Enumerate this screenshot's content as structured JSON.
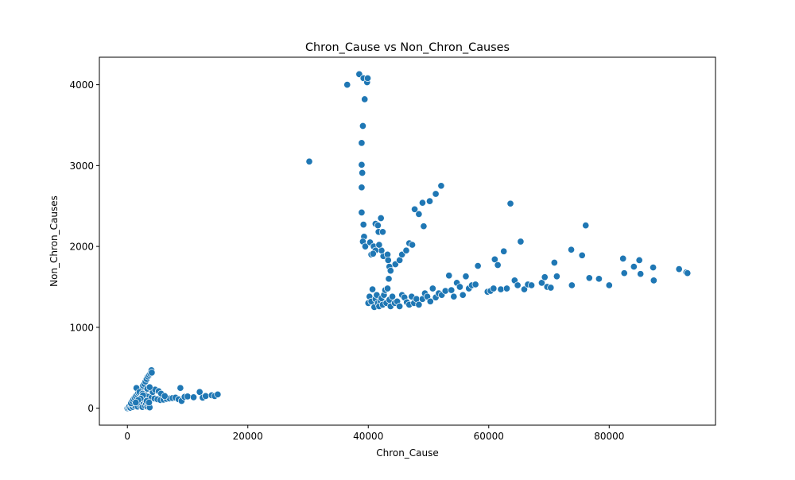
{
  "chart_data": {
    "type": "scatter",
    "title": "Chron_Cause vs Non_Chron_Causes",
    "xlabel": "Chron_Cause",
    "ylabel": "Non_Chron_Causes",
    "xlim": [
      -4650,
      97650
    ],
    "ylim": [
      -210,
      4340
    ],
    "x_ticks": [
      0,
      20000,
      40000,
      60000,
      80000
    ],
    "y_ticks": [
      0,
      1000,
      2000,
      3000,
      4000
    ],
    "grid": false,
    "legend": "none",
    "point_color": "#1f77b4",
    "series": [
      {
        "points": [
          [
            0,
            0
          ],
          [
            150,
            10
          ],
          [
            300,
            20
          ],
          [
            500,
            5
          ],
          [
            700,
            30
          ],
          [
            900,
            15
          ],
          [
            1100,
            40
          ],
          [
            1300,
            25
          ],
          [
            1500,
            60
          ],
          [
            1700,
            20
          ],
          [
            1900,
            80
          ],
          [
            2100,
            35
          ],
          [
            2300,
            50
          ],
          [
            2500,
            15
          ],
          [
            2700,
            70
          ],
          [
            2900,
            30
          ],
          [
            3100,
            55
          ],
          [
            3300,
            20
          ],
          [
            3500,
            45
          ],
          [
            3700,
            10
          ],
          [
            600,
            60
          ],
          [
            800,
            90
          ],
          [
            1000,
            110
          ],
          [
            1200,
            130
          ],
          [
            1400,
            150
          ],
          [
            1600,
            170
          ],
          [
            1800,
            190
          ],
          [
            2000,
            210
          ],
          [
            2200,
            230
          ],
          [
            2400,
            260
          ],
          [
            2600,
            280
          ],
          [
            2800,
            300
          ],
          [
            3000,
            330
          ],
          [
            3200,
            360
          ],
          [
            3400,
            390
          ],
          [
            3600,
            410
          ],
          [
            3800,
            430
          ],
          [
            3900,
            460
          ],
          [
            4000,
            470
          ],
          [
            4050,
            440
          ],
          [
            1500,
            250
          ],
          [
            2000,
            200
          ],
          [
            2500,
            180
          ],
          [
            3000,
            160
          ],
          [
            3500,
            140
          ],
          [
            4000,
            130
          ],
          [
            4500,
            120
          ],
          [
            5000,
            110
          ],
          [
            5500,
            100
          ],
          [
            6000,
            105
          ],
          [
            6500,
            115
          ],
          [
            7000,
            120
          ],
          [
            7500,
            125
          ],
          [
            8000,
            130
          ],
          [
            8500,
            110
          ],
          [
            9000,
            90
          ],
          [
            9500,
            140
          ],
          [
            10000,
            145
          ],
          [
            11000,
            135
          ],
          [
            12000,
            200
          ],
          [
            12500,
            130
          ],
          [
            13000,
            150
          ],
          [
            14000,
            160
          ],
          [
            14500,
            150
          ],
          [
            15000,
            170
          ],
          [
            8800,
            250
          ],
          [
            2800,
            110
          ],
          [
            3200,
            90
          ],
          [
            3600,
            70
          ],
          [
            4200,
            200
          ],
          [
            4600,
            230
          ],
          [
            5200,
            210
          ],
          [
            5600,
            180
          ],
          [
            6200,
            150
          ],
          [
            3300,
            240
          ],
          [
            3700,
            260
          ],
          [
            2600,
            160
          ],
          [
            2200,
            120
          ],
          [
            1800,
            100
          ],
          [
            1400,
            70
          ],
          [
            30200,
            3050
          ],
          [
            36500,
            4000
          ],
          [
            38500,
            4130
          ],
          [
            39200,
            4080
          ],
          [
            39800,
            4030
          ],
          [
            39900,
            4080
          ],
          [
            39400,
            3820
          ],
          [
            39100,
            3490
          ],
          [
            38900,
            3280
          ],
          [
            38900,
            3010
          ],
          [
            39000,
            2910
          ],
          [
            38900,
            2730
          ],
          [
            38900,
            2420
          ],
          [
            39200,
            2270
          ],
          [
            39300,
            2120
          ],
          [
            39100,
            2060
          ],
          [
            39500,
            2000
          ],
          [
            40300,
            2050
          ],
          [
            40500,
            1900
          ],
          [
            40900,
            2000
          ],
          [
            41200,
            2280
          ],
          [
            41600,
            2260
          ],
          [
            41700,
            2180
          ],
          [
            42100,
            2350
          ],
          [
            42400,
            2180
          ],
          [
            42500,
            1880
          ],
          [
            42200,
            1950
          ],
          [
            41800,
            2020
          ],
          [
            41200,
            1950
          ],
          [
            40800,
            1910
          ],
          [
            43200,
            1900
          ],
          [
            43300,
            1830
          ],
          [
            43500,
            1750
          ],
          [
            43700,
            1700
          ],
          [
            43400,
            1600
          ],
          [
            44500,
            1780
          ],
          [
            45200,
            1830
          ],
          [
            45600,
            1900
          ],
          [
            46300,
            1950
          ],
          [
            46800,
            2040
          ],
          [
            47300,
            2020
          ],
          [
            47700,
            2460
          ],
          [
            48400,
            2400
          ],
          [
            49000,
            2540
          ],
          [
            49200,
            2250
          ],
          [
            50200,
            2560
          ],
          [
            51200,
            2650
          ],
          [
            52100,
            2750
          ],
          [
            40000,
            1300
          ],
          [
            40200,
            1380
          ],
          [
            40500,
            1320
          ],
          [
            40700,
            1470
          ],
          [
            41000,
            1250
          ],
          [
            41200,
            1350
          ],
          [
            41400,
            1400
          ],
          [
            41600,
            1300
          ],
          [
            41800,
            1260
          ],
          [
            42000,
            1330
          ],
          [
            42200,
            1360
          ],
          [
            42400,
            1280
          ],
          [
            42600,
            1400
          ],
          [
            42800,
            1460
          ],
          [
            43000,
            1300
          ],
          [
            43200,
            1480
          ],
          [
            43500,
            1340
          ],
          [
            43700,
            1260
          ],
          [
            44000,
            1380
          ],
          [
            44400,
            1300
          ],
          [
            44800,
            1320
          ],
          [
            45200,
            1260
          ],
          [
            45600,
            1400
          ],
          [
            46000,
            1370
          ],
          [
            46400,
            1310
          ],
          [
            46800,
            1280
          ],
          [
            47200,
            1380
          ],
          [
            47600,
            1300
          ],
          [
            48000,
            1350
          ],
          [
            48400,
            1280
          ],
          [
            49000,
            1350
          ],
          [
            49400,
            1420
          ],
          [
            49800,
            1380
          ],
          [
            50300,
            1320
          ],
          [
            50700,
            1480
          ],
          [
            51200,
            1370
          ],
          [
            51700,
            1420
          ],
          [
            52200,
            1400
          ],
          [
            52800,
            1450
          ],
          [
            53400,
            1640
          ],
          [
            53800,
            1460
          ],
          [
            54200,
            1380
          ],
          [
            54700,
            1550
          ],
          [
            55200,
            1500
          ],
          [
            55700,
            1400
          ],
          [
            56200,
            1630
          ],
          [
            56700,
            1480
          ],
          [
            57200,
            1520
          ],
          [
            57800,
            1530
          ],
          [
            58200,
            1760
          ],
          [
            59800,
            1440
          ],
          [
            60300,
            1450
          ],
          [
            60800,
            1480
          ],
          [
            61000,
            1840
          ],
          [
            61500,
            1770
          ],
          [
            62000,
            1470
          ],
          [
            62500,
            1940
          ],
          [
            63000,
            1480
          ],
          [
            63600,
            2530
          ],
          [
            64300,
            1580
          ],
          [
            64800,
            1520
          ],
          [
            65300,
            2060
          ],
          [
            65900,
            1470
          ],
          [
            66500,
            1530
          ],
          [
            67100,
            1520
          ],
          [
            68800,
            1550
          ],
          [
            69300,
            1620
          ],
          [
            69700,
            1500
          ],
          [
            70300,
            1490
          ],
          [
            70900,
            1800
          ],
          [
            71300,
            1630
          ],
          [
            73700,
            1960
          ],
          [
            73800,
            1520
          ],
          [
            75500,
            1890
          ],
          [
            76100,
            2260
          ],
          [
            76700,
            1610
          ],
          [
            78300,
            1600
          ],
          [
            80000,
            1520
          ],
          [
            82300,
            1850
          ],
          [
            82500,
            1670
          ],
          [
            84100,
            1750
          ],
          [
            85000,
            1830
          ],
          [
            85200,
            1660
          ],
          [
            87300,
            1740
          ],
          [
            87400,
            1580
          ],
          [
            91600,
            1720
          ],
          [
            92800,
            1680
          ],
          [
            93000,
            1670
          ]
        ]
      }
    ]
  }
}
